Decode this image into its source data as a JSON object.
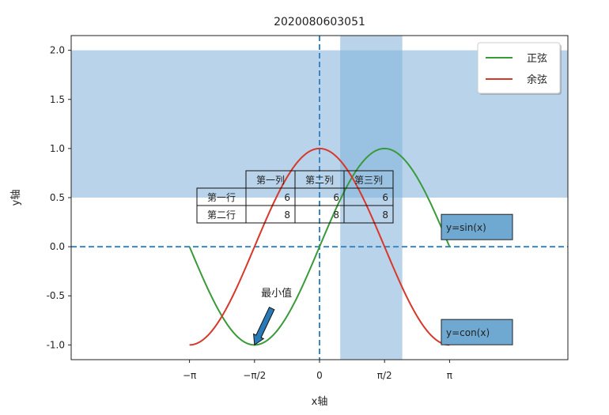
{
  "chart_data": {
    "type": "line",
    "title": "2020080603051",
    "xlabel": "x轴",
    "ylabel": "y轴",
    "xlim": [
      -6.0,
      6.0
    ],
    "ylim": [
      -1.15,
      2.15
    ],
    "x_ticks": [
      {
        "value": -3.14159,
        "label": "−π"
      },
      {
        "value": -1.5708,
        "label": "−π/2"
      },
      {
        "value": 0,
        "label": "0"
      },
      {
        "value": 1.5708,
        "label": "π/2"
      },
      {
        "value": 3.14159,
        "label": "π"
      }
    ],
    "y_ticks": [
      {
        "value": -1.0,
        "label": "-1.0"
      },
      {
        "value": -0.5,
        "label": "-0.5"
      },
      {
        "value": 0.0,
        "label": "0.0"
      },
      {
        "value": 0.5,
        "label": "0.5"
      },
      {
        "value": 1.0,
        "label": "1.0"
      },
      {
        "value": 1.5,
        "label": "1.5"
      },
      {
        "value": 2.0,
        "label": "2.0"
      }
    ],
    "x_range": [
      -3.14159,
      3.14159
    ],
    "series": [
      {
        "name": "正弦",
        "function": "sin",
        "color": "#3a9a3a"
      },
      {
        "name": "余弦",
        "function": "cos",
        "color": "#d8382a"
      }
    ],
    "hspan": {
      "ymin": 0.5,
      "ymax": 2.0,
      "color": "#7fb0d8"
    },
    "vspan": {
      "xmin": 0.5,
      "xmax": 2.0,
      "color": "#7fb0d8"
    },
    "hline": {
      "y": 0.0,
      "color": "#3a87c4",
      "style": "dashed"
    },
    "vline": {
      "x": 0.0,
      "color": "#3a87c4",
      "style": "dashed"
    },
    "legend_location": "upper right",
    "annotation": {
      "text": "最小值",
      "xy": [
        -1.5708,
        -1.0
      ],
      "xytext": [
        -1.0,
        -0.5
      ]
    },
    "text_boxes": [
      {
        "text": "y=sin(x)",
        "x": 3.0,
        "y": 0.12
      },
      {
        "text": "y=con(x)",
        "x": 3.0,
        "y": -0.95
      }
    ],
    "table": {
      "col_labels": [
        "第一列",
        "第二列",
        "第三列"
      ],
      "row_labels": [
        "第一行",
        "第二行"
      ],
      "cells": [
        [
          "6",
          "6",
          "6"
        ],
        [
          "8",
          "8",
          "8"
        ]
      ]
    },
    "grid": false
  }
}
